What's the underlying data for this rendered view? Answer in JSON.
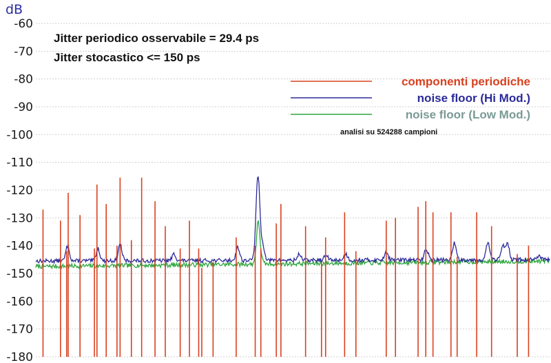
{
  "chart_data": {
    "type": "line",
    "ylabel": "dB",
    "ylim": [
      -180,
      -60
    ],
    "yticks": [
      "-60",
      "-70",
      "-80",
      "-90",
      "-100",
      "-110",
      "-120",
      "-130",
      "-140",
      "-150",
      "-160",
      "-170",
      "-180"
    ],
    "grid": true,
    "legend_position": "top-right",
    "annotations": [
      "Jitter  periodico osservabile =  29.4 ps",
      "Jitter stocastico <=  150 ps"
    ],
    "note": "analisi su 524288 campioni",
    "colors": {
      "periodic": "#d9401f",
      "hi": "#2b2a9a",
      "low": "#2da63e",
      "low_label": "#7a9a95",
      "grid": "#cfcfcf",
      "axis_label": "#2a2fa0"
    },
    "series": [
      {
        "name": "componenti  periodiche",
        "kind": "spikes",
        "points": [
          [
            0.014,
            -127
          ],
          [
            0.048,
            -131
          ],
          [
            0.06,
            -142
          ],
          [
            0.063,
            -121
          ],
          [
            0.086,
            -129
          ],
          [
            0.114,
            -141
          ],
          [
            0.119,
            -118
          ],
          [
            0.137,
            -125
          ],
          [
            0.158,
            -140
          ],
          [
            0.164,
            -115.5
          ],
          [
            0.186,
            -138
          ],
          [
            0.206,
            -115.5
          ],
          [
            0.232,
            -124
          ],
          [
            0.252,
            -133
          ],
          [
            0.281,
            -141
          ],
          [
            0.299,
            -131
          ],
          [
            0.317,
            -141
          ],
          [
            0.323,
            -148
          ],
          [
            0.345,
            -146
          ],
          [
            0.39,
            -137
          ],
          [
            0.427,
            -140
          ],
          [
            0.438,
            -141
          ],
          [
            0.468,
            -132
          ],
          [
            0.477,
            -125
          ],
          [
            0.525,
            -133
          ],
          [
            0.556,
            -146
          ],
          [
            0.564,
            -137
          ],
          [
            0.601,
            -128
          ],
          [
            0.623,
            -142
          ],
          [
            0.682,
            -131
          ],
          [
            0.7,
            -130
          ],
          [
            0.744,
            -126
          ],
          [
            0.759,
            -124
          ],
          [
            0.773,
            -128
          ],
          [
            0.808,
            -128
          ],
          [
            0.82,
            -144
          ],
          [
            0.858,
            -128
          ],
          [
            0.887,
            -133
          ],
          [
            0.937,
            -143
          ],
          [
            0.959,
            -140
          ]
        ]
      },
      {
        "name": "noise floor (Hi Mod.)",
        "base_start": -145.5,
        "base_end": -145,
        "peaks": [
          [
            0.062,
            -140
          ],
          [
            0.121,
            -141
          ],
          [
            0.164,
            -139.5
          ],
          [
            0.269,
            -143
          ],
          [
            0.393,
            -140.5
          ],
          [
            0.43,
            -137
          ],
          [
            0.433,
            -121
          ],
          [
            0.442,
            -140
          ],
          [
            0.513,
            -143
          ],
          [
            0.565,
            -143.5
          ],
          [
            0.603,
            -143
          ],
          [
            0.682,
            -142
          ],
          [
            0.76,
            -141
          ],
          [
            0.815,
            -139
          ],
          [
            0.88,
            -139
          ],
          [
            0.909,
            -140
          ],
          [
            0.918,
            -139
          ],
          [
            0.98,
            -144
          ]
        ]
      },
      {
        "name": "noise floor (Low Mod.)",
        "base_start": -147.5,
        "base_end": -145.5,
        "peaks": [
          [
            0.43,
            -146
          ],
          [
            0.433,
            -132
          ],
          [
            0.44,
            -146
          ]
        ]
      }
    ]
  }
}
